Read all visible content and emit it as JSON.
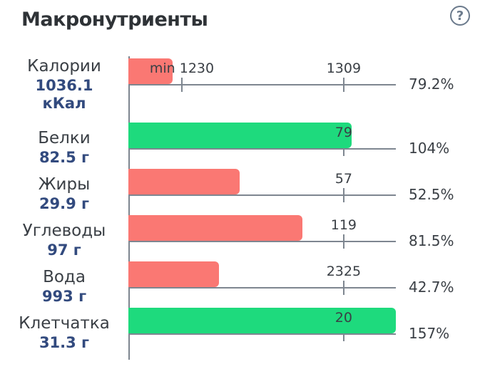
{
  "header": {
    "title": "Макронутриенты",
    "help_glyph": "?"
  },
  "colors": {
    "red": "#fa7873",
    "green": "#1eda7d",
    "axis": "#7e8690",
    "text_dark": "#3a3f45",
    "value_blue": "#324a7e",
    "title": "#2f3337",
    "help_icon": "#6b7a8c"
  },
  "chart_data": {
    "type": "bar",
    "orientation": "horizontal",
    "title": "Макронутриенты",
    "note": "Each row: consumed amount vs daily target; bar capped at axis width; green = target reached, red = below target",
    "rows": [
      {
        "key": "calories",
        "name": "Калории",
        "value": 1036.1,
        "unit": "кКал",
        "value_label": "1036.1 кКал",
        "min": 1230,
        "target": 1309,
        "percent": 79.2,
        "percent_label": "79.2%",
        "bar": {
          "color": "red",
          "fill_pct": 16.5
        },
        "ticks": [
          {
            "pct": 20,
            "value": 1230,
            "label": "min 1230"
          },
          {
            "pct": 80.5,
            "value": 1309,
            "label": "1309"
          }
        ]
      },
      {
        "key": "protein",
        "name": "Белки",
        "value": 82.5,
        "unit": "г",
        "value_label": "82.5 г",
        "target": 79,
        "percent": 104,
        "percent_label": "104%",
        "bar": {
          "color": "green",
          "fill_pct": 83.5
        },
        "ticks": [
          {
            "pct": 80.5,
            "value": 79,
            "label": "79"
          }
        ]
      },
      {
        "key": "fat",
        "name": "Жиры",
        "value": 29.9,
        "unit": "г",
        "value_label": "29.9 г",
        "target": 57,
        "percent": 52.5,
        "percent_label": "52.5%",
        "bar": {
          "color": "red",
          "fill_pct": 41.6
        },
        "ticks": [
          {
            "pct": 80.5,
            "value": 57,
            "label": "57"
          }
        ]
      },
      {
        "key": "carbs",
        "name": "Углеводы",
        "value": 97,
        "unit": "г",
        "value_label": "97 г",
        "target": 119,
        "percent": 81.5,
        "percent_label": "81.5%",
        "bar": {
          "color": "red",
          "fill_pct": 65.1
        },
        "ticks": [
          {
            "pct": 80.5,
            "value": 119,
            "label": "119"
          }
        ]
      },
      {
        "key": "water",
        "name": "Вода",
        "value": 993,
        "unit": "г",
        "value_label": "993 г",
        "target": 2325,
        "percent": 42.7,
        "percent_label": "42.7%",
        "bar": {
          "color": "red",
          "fill_pct": 33.9
        },
        "ticks": [
          {
            "pct": 80.5,
            "value": 2325,
            "label": "2325"
          }
        ]
      },
      {
        "key": "fiber",
        "name": "Клетчатка",
        "value": 31.3,
        "unit": "г",
        "value_label": "31.3 г",
        "target": 20,
        "percent": 157,
        "percent_label": "157%",
        "bar": {
          "color": "green",
          "fill_pct": 100
        },
        "ticks": [
          {
            "pct": 80.5,
            "value": 20,
            "label": "20"
          }
        ]
      }
    ]
  }
}
